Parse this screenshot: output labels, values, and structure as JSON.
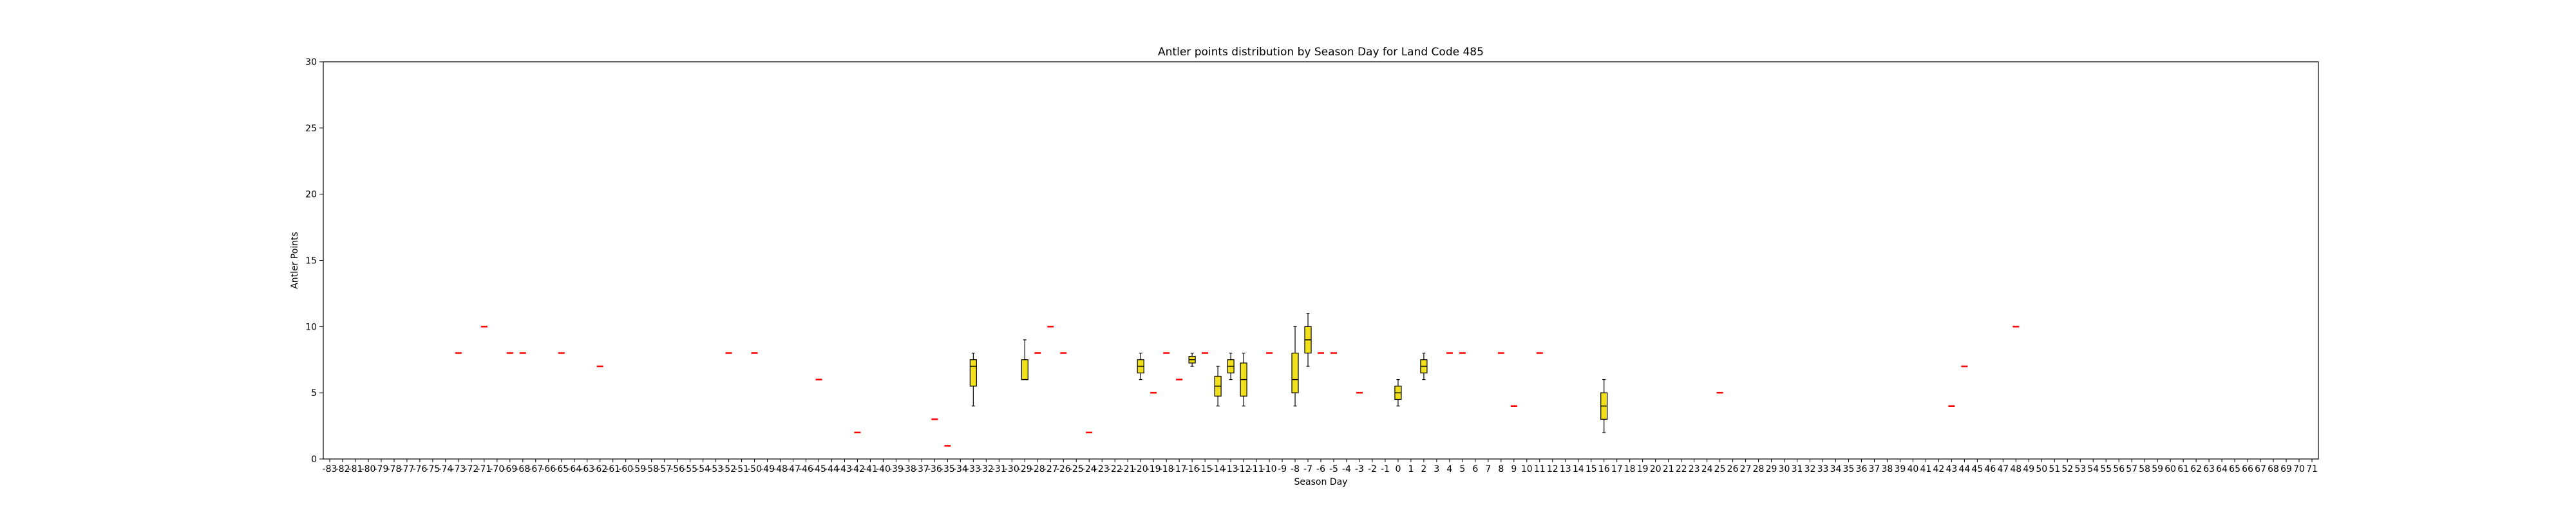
{
  "chart_data": {
    "type": "box",
    "title": "Antler points distribution by Season Day for Land Code 485",
    "xlabel": "Season Day",
    "ylabel": "Antler Points",
    "ylim": [
      0,
      30
    ],
    "yticks": [
      0,
      5,
      10,
      15,
      20,
      25,
      30
    ],
    "x_categories_range": [
      -83,
      71
    ],
    "grid": false,
    "colors": {
      "box_fill": "#f2e01a",
      "median": "#ff0000",
      "outline": "#000000"
    },
    "boxes": [
      {
        "x": -73,
        "min": 8,
        "q1": 8,
        "median": 8,
        "q3": 8,
        "max": 8
      },
      {
        "x": -71,
        "min": 10,
        "q1": 10,
        "median": 10,
        "q3": 10,
        "max": 10
      },
      {
        "x": -69,
        "min": 8,
        "q1": 8,
        "median": 8,
        "q3": 8,
        "max": 8
      },
      {
        "x": -68,
        "min": 8,
        "q1": 8,
        "median": 8,
        "q3": 8,
        "max": 8
      },
      {
        "x": -65,
        "min": 8,
        "q1": 8,
        "median": 8,
        "q3": 8,
        "max": 8
      },
      {
        "x": -62,
        "min": 7,
        "q1": 7,
        "median": 7,
        "q3": 7,
        "max": 7
      },
      {
        "x": -52,
        "min": 8,
        "q1": 8,
        "median": 8,
        "q3": 8,
        "max": 8
      },
      {
        "x": -50,
        "min": 8,
        "q1": 8,
        "median": 8,
        "q3": 8,
        "max": 8
      },
      {
        "x": -45,
        "min": 6,
        "q1": 6,
        "median": 6,
        "q3": 6,
        "max": 6
      },
      {
        "x": -42,
        "min": 2,
        "q1": 2,
        "median": 2,
        "q3": 2,
        "max": 2
      },
      {
        "x": -36,
        "min": 3,
        "q1": 3,
        "median": 3,
        "q3": 3,
        "max": 3
      },
      {
        "x": -35,
        "min": 1,
        "q1": 1,
        "median": 1,
        "q3": 1,
        "max": 1
      },
      {
        "x": -33,
        "min": 4,
        "q1": 5.5,
        "median": 7,
        "q3": 7.5,
        "max": 8
      },
      {
        "x": -29,
        "min": 6,
        "q1": 6,
        "median": 6,
        "q3": 7.5,
        "max": 9
      },
      {
        "x": -28,
        "min": 8,
        "q1": 8,
        "median": 8,
        "q3": 8,
        "max": 8
      },
      {
        "x": -27,
        "min": 10,
        "q1": 10,
        "median": 10,
        "q3": 10,
        "max": 10
      },
      {
        "x": -26,
        "min": 8,
        "q1": 8,
        "median": 8,
        "q3": 8,
        "max": 8
      },
      {
        "x": -24,
        "min": 2,
        "q1": 2,
        "median": 2,
        "q3": 2,
        "max": 2
      },
      {
        "x": -20,
        "min": 6,
        "q1": 6.5,
        "median": 7,
        "q3": 7.5,
        "max": 8
      },
      {
        "x": -19,
        "min": 5,
        "q1": 5,
        "median": 5,
        "q3": 5,
        "max": 5
      },
      {
        "x": -18,
        "min": 8,
        "q1": 8,
        "median": 8,
        "q3": 8,
        "max": 8
      },
      {
        "x": -17,
        "min": 6,
        "q1": 6,
        "median": 6,
        "q3": 6,
        "max": 6
      },
      {
        "x": -16,
        "min": 7,
        "q1": 7.25,
        "median": 7.5,
        "q3": 7.75,
        "max": 8
      },
      {
        "x": -15,
        "min": 8,
        "q1": 8,
        "median": 8,
        "q3": 8,
        "max": 8
      },
      {
        "x": -14,
        "min": 4,
        "q1": 4.75,
        "median": 5.5,
        "q3": 6.25,
        "max": 7
      },
      {
        "x": -13,
        "min": 6,
        "q1": 6.5,
        "median": 7,
        "q3": 7.5,
        "max": 8
      },
      {
        "x": -12,
        "min": 4,
        "q1": 4.75,
        "median": 6,
        "q3": 7.25,
        "max": 8
      },
      {
        "x": -10,
        "min": 8,
        "q1": 8,
        "median": 8,
        "q3": 8,
        "max": 8
      },
      {
        "x": -8,
        "min": 4,
        "q1": 5,
        "median": 6,
        "q3": 8,
        "max": 10
      },
      {
        "x": -7,
        "min": 7,
        "q1": 8,
        "median": 9,
        "q3": 10,
        "max": 11
      },
      {
        "x": -6,
        "min": 8,
        "q1": 8,
        "median": 8,
        "q3": 8,
        "max": 8
      },
      {
        "x": -5,
        "min": 8,
        "q1": 8,
        "median": 8,
        "q3": 8,
        "max": 8
      },
      {
        "x": -3,
        "min": 5,
        "q1": 5,
        "median": 5,
        "q3": 5,
        "max": 5
      },
      {
        "x": 0,
        "min": 4,
        "q1": 4.5,
        "median": 5,
        "q3": 5.5,
        "max": 6
      },
      {
        "x": 2,
        "min": 6,
        "q1": 6.5,
        "median": 7,
        "q3": 7.5,
        "max": 8
      },
      {
        "x": 4,
        "min": 8,
        "q1": 8,
        "median": 8,
        "q3": 8,
        "max": 8
      },
      {
        "x": 5,
        "min": 8,
        "q1": 8,
        "median": 8,
        "q3": 8,
        "max": 8
      },
      {
        "x": 8,
        "min": 8,
        "q1": 8,
        "median": 8,
        "q3": 8,
        "max": 8
      },
      {
        "x": 9,
        "min": 4,
        "q1": 4,
        "median": 4,
        "q3": 4,
        "max": 4
      },
      {
        "x": 11,
        "min": 8,
        "q1": 8,
        "median": 8,
        "q3": 8,
        "max": 8
      },
      {
        "x": 16,
        "min": 2,
        "q1": 3,
        "median": 4,
        "q3": 5,
        "max": 6
      },
      {
        "x": 25,
        "min": 5,
        "q1": 5,
        "median": 5,
        "q3": 5,
        "max": 5
      },
      {
        "x": 43,
        "min": 4,
        "q1": 4,
        "median": 4,
        "q3": 4,
        "max": 4
      },
      {
        "x": 44,
        "min": 7,
        "q1": 7,
        "median": 7,
        "q3": 7,
        "max": 7
      },
      {
        "x": 48,
        "min": 10,
        "q1": 10,
        "median": 10,
        "q3": 10,
        "max": 10
      }
    ]
  }
}
